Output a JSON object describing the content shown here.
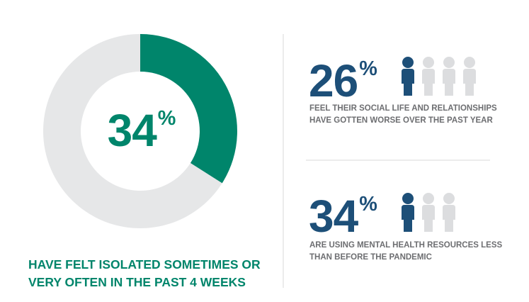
{
  "chart_data": [
    {
      "type": "donut",
      "values": [
        34,
        66
      ],
      "value_labels": [
        "34%",
        null
      ],
      "colors": [
        "#00856b",
        "#e6e7e8"
      ],
      "caption": "HAVE FELT ISOLATED SOMETIMES OR VERY OFTEN IN THE PAST 4 WEEKS"
    },
    {
      "type": "stat",
      "value": 26,
      "value_label": "26%",
      "icons": {
        "filled": 1,
        "total": 4
      },
      "colors": [
        "#1d4f78",
        "#dcdddf"
      ],
      "caption": "FEEL THEIR SOCIAL LIFE AND RELATIONSHIPS HAVE GOTTEN WORSE OVER THE PAST YEAR"
    },
    {
      "type": "stat",
      "value": 34,
      "value_label": "34%",
      "icons": {
        "filled": 1,
        "total": 3
      },
      "colors": [
        "#1d4f78",
        "#dcdddf"
      ],
      "caption": "ARE USING MENTAL HEALTH RESOURCES LESS THAN BEFORE THE PANDEMIC"
    }
  ]
}
